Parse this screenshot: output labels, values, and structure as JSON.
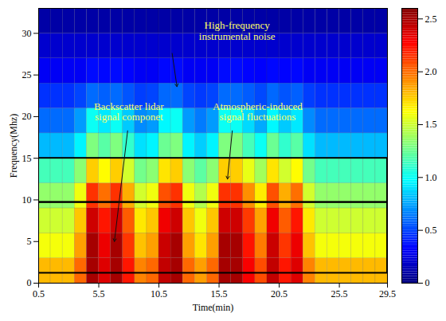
{
  "chart_data": {
    "type": "heatmap",
    "x_label": "Time(min)",
    "y_label": "Frequency(Mhz)",
    "xlim": [
      0.5,
      29.5
    ],
    "xticks": [
      0.5,
      5.5,
      10.5,
      15.5,
      20.5,
      25.5,
      29.5
    ],
    "ylim": [
      0,
      33
    ],
    "yticks": [
      0,
      5,
      10,
      15,
      20,
      25,
      30
    ],
    "time_bins": [
      0.5,
      1.5,
      2.5,
      3.5,
      4.5,
      5.5,
      6.5,
      7.5,
      8.5,
      9.5,
      10.5,
      11.5,
      12.5,
      13.5,
      14.5,
      15.5,
      16.5,
      17.5,
      18.5,
      19.5,
      20.5,
      21.5,
      22.5,
      23.5,
      24.5,
      25.5,
      26.5,
      27.5,
      28.5,
      29.5
    ],
    "frequency_bins": [
      0,
      3,
      6,
      9,
      12,
      15,
      18,
      21,
      24,
      27,
      30,
      33
    ],
    "cells": [
      [
        1.8,
        1.8,
        1.8,
        2.01,
        2.5,
        2.36,
        2.5,
        2.22,
        1.94,
        2.01,
        2.43,
        2.5,
        2.01,
        1.87,
        2.01,
        2.5,
        2.5,
        2.29,
        2.08,
        2.43,
        2.22,
        2.36,
        1.94,
        1.8,
        1.8,
        1.8,
        1.8,
        1.8,
        1.8
      ],
      [
        1.6,
        1.6,
        1.6,
        1.87,
        2.5,
        2.32,
        2.5,
        2.14,
        1.78,
        1.87,
        2.41,
        2.5,
        1.87,
        1.69,
        1.87,
        2.5,
        2.5,
        2.23,
        1.96,
        2.41,
        2.14,
        2.32,
        1.78,
        1.6,
        1.6,
        1.6,
        1.6,
        1.6,
        1.6
      ],
      [
        1.5,
        1.5,
        1.5,
        1.77,
        2.4,
        2.22,
        2.4,
        2.04,
        1.68,
        1.77,
        2.31,
        2.4,
        1.77,
        1.59,
        1.77,
        2.4,
        2.4,
        2.13,
        1.86,
        2.31,
        2.04,
        2.22,
        1.68,
        1.5,
        1.5,
        1.5,
        1.5,
        1.5,
        1.5
      ],
      [
        1.35,
        1.35,
        1.35,
        1.59,
        2.15,
        1.99,
        2.15,
        1.83,
        1.51,
        1.59,
        2.07,
        2.15,
        1.59,
        1.43,
        1.59,
        2.15,
        2.15,
        1.91,
        1.67,
        2.07,
        1.83,
        1.99,
        1.51,
        1.35,
        1.35,
        1.35,
        1.35,
        1.35,
        1.35
      ],
      [
        1.15,
        1.15,
        1.15,
        1.33,
        1.75,
        1.63,
        1.75,
        1.51,
        1.27,
        1.33,
        1.69,
        1.75,
        1.33,
        1.21,
        1.33,
        1.75,
        1.75,
        1.57,
        1.39,
        1.69,
        1.51,
        1.63,
        1.27,
        1.15,
        1.15,
        1.15,
        1.15,
        1.15,
        1.15
      ],
      [
        0.8,
        0.8,
        0.8,
        0.95,
        1.3,
        1.2,
        1.3,
        1.1,
        0.9,
        0.95,
        1.25,
        1.3,
        0.95,
        0.85,
        0.95,
        1.3,
        1.3,
        1.15,
        1,
        1.25,
        1.1,
        1.2,
        0.9,
        0.8,
        0.8,
        0.8,
        0.8,
        0.8,
        0.8
      ],
      [
        0.6,
        0.6,
        0.6,
        0.72,
        1,
        0.92,
        1,
        0.84,
        0.68,
        0.72,
        0.96,
        1,
        0.72,
        0.64,
        0.72,
        1,
        1,
        0.88,
        0.76,
        0.96,
        0.84,
        0.92,
        0.68,
        0.6,
        0.6,
        0.6,
        0.6,
        0.6,
        0.6
      ],
      [
        0.45,
        0.45,
        0.45,
        0.5,
        0.6,
        0.57,
        0.6,
        0.54,
        0.48,
        0.5,
        0.59,
        0.6,
        0.5,
        0.47,
        0.5,
        0.6,
        0.6,
        0.56,
        0.51,
        0.59,
        0.54,
        0.57,
        0.48,
        0.45,
        0.45,
        0.45,
        0.45,
        0.45,
        0.45
      ],
      [
        0.3,
        0.3,
        0.3,
        0.3,
        0.35,
        0.34,
        0.35,
        0.33,
        0.3,
        0.3,
        0.34,
        0.35,
        0.3,
        0.3,
        0.3,
        0.35,
        0.35,
        0.33,
        0.32,
        0.34,
        0.33,
        0.34,
        0.3,
        0.3,
        0.3,
        0.3,
        0.3,
        0.3,
        0.3
      ],
      [
        0.2,
        0.2,
        0.2,
        0.2,
        0.2,
        0.2,
        0.2,
        0.2,
        0.2,
        0.2,
        0.2,
        0.2,
        0.2,
        0.2,
        0.2,
        0.2,
        0.2,
        0.2,
        0.2,
        0.2,
        0.2,
        0.2,
        0.2,
        0.2,
        0.2,
        0.2,
        0.2,
        0.2,
        0.2
      ],
      [
        0.1,
        0.1,
        0.1,
        0.1,
        0.1,
        0.1,
        0.1,
        0.1,
        0.1,
        0.1,
        0.1,
        0.1,
        0.1,
        0.1,
        0.1,
        0.1,
        0.1,
        0.1,
        0.1,
        0.1,
        0.1,
        0.1,
        0.1,
        0.1,
        0.1,
        0.1,
        0.1,
        0.1,
        0.1
      ]
    ],
    "colorbar": {
      "lim": [
        0,
        2.6
      ],
      "ticks": [
        0,
        0.5,
        {
          "value": 1,
          "label": "1.0"
        },
        1.5,
        {
          "value": 2,
          "label": "2.0"
        },
        2.5
      ]
    },
    "bands": [
      [
        1.2,
        9.7
      ],
      [
        9.7,
        15
      ]
    ],
    "annotations": [
      "High-frequency\ninstrumental noise",
      "Backscatter lidar\nsignal componet",
      "Atmospheric-induced\nsignal fluctuations"
    ]
  }
}
